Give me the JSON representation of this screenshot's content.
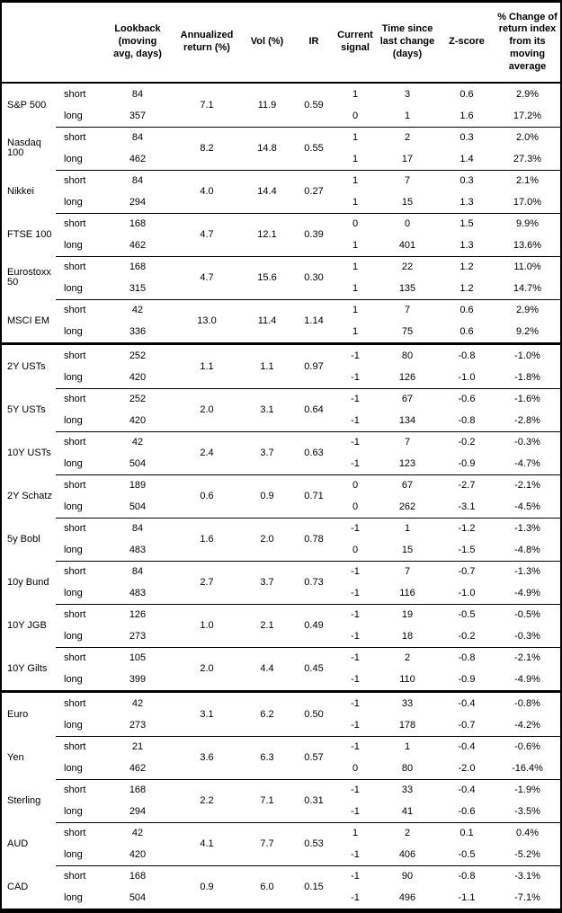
{
  "table": {
    "leg_labels": {
      "short": "short",
      "long": "long"
    },
    "columns": {
      "lookback": "Lookback\n(moving\navg, days)",
      "annualized_return": "Annualized\nreturn (%)",
      "vol": "Vol (%)",
      "ir": "IR",
      "current_signal": "Current\nsignal",
      "time_since_change": "Time since\nlast change\n(days)",
      "zscore": "Z-score",
      "pct_change": "% Change of\nreturn index\nfrom its\nmoving\naverage"
    },
    "groups": [
      {
        "name": "S&P 500",
        "annualized_return": "7.1",
        "vol": "11.9",
        "ir": "0.59",
        "short": {
          "lookback": "84",
          "signal": "1",
          "time_since": "3",
          "zscore": "0.6",
          "pct_change": "2.9%"
        },
        "long": {
          "lookback": "357",
          "signal": "0",
          "time_since": "1",
          "zscore": "1.6",
          "pct_change": "17.2%"
        }
      },
      {
        "name": "Nasdaq 100",
        "annualized_return": "8.2",
        "vol": "14.8",
        "ir": "0.55",
        "short": {
          "lookback": "84",
          "signal": "1",
          "time_since": "2",
          "zscore": "0.3",
          "pct_change": "2.0%"
        },
        "long": {
          "lookback": "462",
          "signal": "1",
          "time_since": "17",
          "zscore": "1.4",
          "pct_change": "27.3%"
        }
      },
      {
        "name": "Nikkei",
        "annualized_return": "4.0",
        "vol": "14.4",
        "ir": "0.27",
        "short": {
          "lookback": "84",
          "signal": "1",
          "time_since": "7",
          "zscore": "0.3",
          "pct_change": "2.1%"
        },
        "long": {
          "lookback": "294",
          "signal": "1",
          "time_since": "15",
          "zscore": "1.3",
          "pct_change": "17.0%"
        }
      },
      {
        "name": "FTSE 100",
        "annualized_return": "4.7",
        "vol": "12.1",
        "ir": "0.39",
        "short": {
          "lookback": "168",
          "signal": "0",
          "time_since": "0",
          "zscore": "1.5",
          "pct_change": "9.9%"
        },
        "long": {
          "lookback": "462",
          "signal": "1",
          "time_since": "401",
          "zscore": "1.3",
          "pct_change": "13.6%"
        }
      },
      {
        "name": "Eurostoxx 50",
        "annualized_return": "4.7",
        "vol": "15.6",
        "ir": "0.30",
        "short": {
          "lookback": "168",
          "signal": "1",
          "time_since": "22",
          "zscore": "1.2",
          "pct_change": "11.0%"
        },
        "long": {
          "lookback": "315",
          "signal": "1",
          "time_since": "135",
          "zscore": "1.2",
          "pct_change": "14.7%"
        }
      },
      {
        "name": "MSCI EM",
        "annualized_return": "13.0",
        "vol": "11.4",
        "ir": "1.14",
        "short": {
          "lookback": "42",
          "signal": "1",
          "time_since": "7",
          "zscore": "0.6",
          "pct_change": "2.9%"
        },
        "long": {
          "lookback": "336",
          "signal": "1",
          "time_since": "75",
          "zscore": "0.6",
          "pct_change": "9.2%"
        }
      },
      {
        "name": "2Y USTs",
        "new_section": true,
        "annualized_return": "1.1",
        "vol": "1.1",
        "ir": "0.97",
        "short": {
          "lookback": "252",
          "signal": "-1",
          "time_since": "80",
          "zscore": "-0.8",
          "pct_change": "-1.0%"
        },
        "long": {
          "lookback": "420",
          "signal": "-1",
          "time_since": "126",
          "zscore": "-1.0",
          "pct_change": "-1.8%"
        }
      },
      {
        "name": "5Y USTs",
        "annualized_return": "2.0",
        "vol": "3.1",
        "ir": "0.64",
        "short": {
          "lookback": "252",
          "signal": "-1",
          "time_since": "67",
          "zscore": "-0.6",
          "pct_change": "-1.6%"
        },
        "long": {
          "lookback": "420",
          "signal": "-1",
          "time_since": "134",
          "zscore": "-0.8",
          "pct_change": "-2.8%"
        }
      },
      {
        "name": "10Y USTs",
        "annualized_return": "2.4",
        "vol": "3.7",
        "ir": "0.63",
        "short": {
          "lookback": "42",
          "signal": "-1",
          "time_since": "7",
          "zscore": "-0.2",
          "pct_change": "-0.3%"
        },
        "long": {
          "lookback": "504",
          "signal": "-1",
          "time_since": "123",
          "zscore": "-0.9",
          "pct_change": "-4.7%"
        }
      },
      {
        "name": "2Y Schatz",
        "annualized_return": "0.6",
        "vol": "0.9",
        "ir": "0.71",
        "short": {
          "lookback": "189",
          "signal": "0",
          "time_since": "67",
          "zscore": "-2.7",
          "pct_change": "-2.1%"
        },
        "long": {
          "lookback": "504",
          "signal": "0",
          "time_since": "262",
          "zscore": "-3.1",
          "pct_change": "-4.5%"
        }
      },
      {
        "name": "5y Bobl",
        "annualized_return": "1.6",
        "vol": "2.0",
        "ir": "0.78",
        "short": {
          "lookback": "84",
          "signal": "-1",
          "time_since": "1",
          "zscore": "-1.2",
          "pct_change": "-1.3%"
        },
        "long": {
          "lookback": "483",
          "signal": "0",
          "time_since": "15",
          "zscore": "-1.5",
          "pct_change": "-4.8%"
        }
      },
      {
        "name": "10y Bund",
        "annualized_return": "2.7",
        "vol": "3.7",
        "ir": "0.73",
        "short": {
          "lookback": "84",
          "signal": "-1",
          "time_since": "7",
          "zscore": "-0.7",
          "pct_change": "-1.3%"
        },
        "long": {
          "lookback": "483",
          "signal": "-1",
          "time_since": "116",
          "zscore": "-1.0",
          "pct_change": "-4.9%"
        }
      },
      {
        "name": "10Y JGB",
        "annualized_return": "1.0",
        "vol": "2.1",
        "ir": "0.49",
        "short": {
          "lookback": "126",
          "signal": "-1",
          "time_since": "19",
          "zscore": "-0.5",
          "pct_change": "-0.5%"
        },
        "long": {
          "lookback": "273",
          "signal": "-1",
          "time_since": "18",
          "zscore": "-0.2",
          "pct_change": "-0.3%"
        }
      },
      {
        "name": "10Y Gilts",
        "annualized_return": "2.0",
        "vol": "4.4",
        "ir": "0.45",
        "short": {
          "lookback": "105",
          "signal": "-1",
          "time_since": "2",
          "zscore": "-0.8",
          "pct_change": "-2.1%"
        },
        "long": {
          "lookback": "399",
          "signal": "-1",
          "time_since": "110",
          "zscore": "-0.9",
          "pct_change": "-4.9%"
        }
      },
      {
        "name": "Euro",
        "new_section": true,
        "annualized_return": "3.1",
        "vol": "6.2",
        "ir": "0.50",
        "short": {
          "lookback": "42",
          "signal": "-1",
          "time_since": "33",
          "zscore": "-0.4",
          "pct_change": "-0.8%"
        },
        "long": {
          "lookback": "273",
          "signal": "-1",
          "time_since": "178",
          "zscore": "-0.7",
          "pct_change": "-4.2%"
        }
      },
      {
        "name": "Yen",
        "annualized_return": "3.6",
        "vol": "6.3",
        "ir": "0.57",
        "short": {
          "lookback": "21",
          "signal": "-1",
          "time_since": "1",
          "zscore": "-0.4",
          "pct_change": "-0.6%"
        },
        "long": {
          "lookback": "462",
          "signal": "0",
          "time_since": "80",
          "zscore": "-2.0",
          "pct_change": "-16.4%"
        }
      },
      {
        "name": "Sterling",
        "annualized_return": "2.2",
        "vol": "7.1",
        "ir": "0.31",
        "short": {
          "lookback": "168",
          "signal": "-1",
          "time_since": "33",
          "zscore": "-0.4",
          "pct_change": "-1.9%"
        },
        "long": {
          "lookback": "294",
          "signal": "-1",
          "time_since": "41",
          "zscore": "-0.6",
          "pct_change": "-3.5%"
        }
      },
      {
        "name": "AUD",
        "annualized_return": "4.1",
        "vol": "7.7",
        "ir": "0.53",
        "short": {
          "lookback": "42",
          "signal": "1",
          "time_since": "2",
          "zscore": "0.1",
          "pct_change": "0.4%"
        },
        "long": {
          "lookback": "420",
          "signal": "-1",
          "time_since": "406",
          "zscore": "-0.5",
          "pct_change": "-5.2%"
        }
      },
      {
        "name": "CAD",
        "annualized_return": "0.9",
        "vol": "6.0",
        "ir": "0.15",
        "short": {
          "lookback": "168",
          "signal": "-1",
          "time_since": "90",
          "zscore": "-0.8",
          "pct_change": "-3.1%"
        },
        "long": {
          "lookback": "504",
          "signal": "-1",
          "time_since": "496",
          "zscore": "-1.1",
          "pct_change": "-7.1%"
        }
      }
    ]
  }
}
